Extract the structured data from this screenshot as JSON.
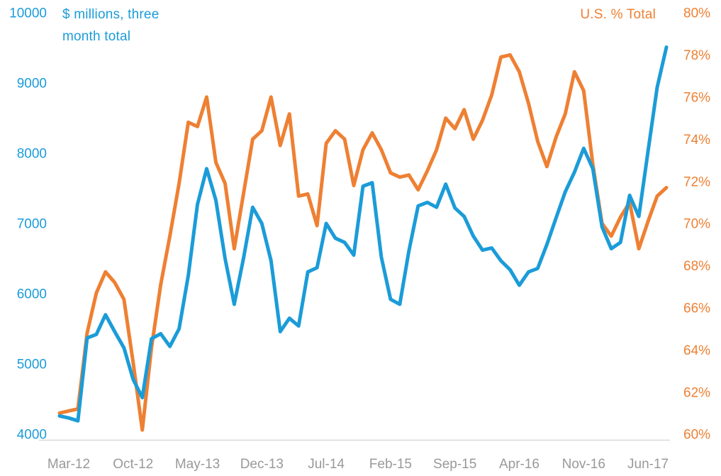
{
  "colors": {
    "blue": "#1b9cd8",
    "orange": "#ee8033",
    "x_tick_gray": "#98999b",
    "axis_line": "#d9d9d9",
    "background": "#ffffff"
  },
  "chart_data": {
    "type": "line",
    "title": "",
    "left_axis_title": "$ millions, three month total",
    "right_axis_title": "U.S. % Total",
    "grid": false,
    "legend_position": "top (axis titles act as legend)",
    "x": [
      "Feb-12",
      "Mar-12",
      "Apr-12",
      "May-12",
      "Jun-12",
      "Jul-12",
      "Aug-12",
      "Sep-12",
      "Oct-12",
      "Nov-12",
      "Dec-12",
      "Jan-13",
      "Feb-13",
      "Mar-13",
      "Apr-13",
      "May-13",
      "Jun-13",
      "Jul-13",
      "Aug-13",
      "Sep-13",
      "Oct-13",
      "Nov-13",
      "Dec-13",
      "Jan-14",
      "Feb-14",
      "Mar-14",
      "Apr-14",
      "May-14",
      "Jun-14",
      "Jul-14",
      "Aug-14",
      "Sep-14",
      "Oct-14",
      "Nov-14",
      "Dec-14",
      "Jan-15",
      "Feb-15",
      "Mar-15",
      "Apr-15",
      "May-15",
      "Jun-15",
      "Jul-15",
      "Aug-15",
      "Sep-15",
      "Oct-15",
      "Nov-15",
      "Dec-15",
      "Jan-16",
      "Feb-16",
      "Mar-16",
      "Apr-16",
      "May-16",
      "Jun-16",
      "Jul-16",
      "Aug-16",
      "Sep-16",
      "Oct-16",
      "Nov-16",
      "Dec-16",
      "Jan-17",
      "Feb-17",
      "Mar-17",
      "Apr-17",
      "May-17",
      "Jun-17",
      "Jul-17",
      "Aug-17"
    ],
    "x_tick_labels": [
      "Mar-12",
      "Oct-12",
      "May-13",
      "Dec-13",
      "Jul-14",
      "Feb-15",
      "Sep-15",
      "Apr-16",
      "Nov-16",
      "Jun-17"
    ],
    "x_tick_indices": [
      1,
      8,
      15,
      22,
      29,
      36,
      43,
      50,
      57,
      64
    ],
    "left_axis": {
      "min": 4000,
      "max": 10000,
      "step": 1000,
      "tick_labels": [
        "10000",
        "9000",
        "8000",
        "7000",
        "6000",
        "5000",
        "4000"
      ]
    },
    "right_axis": {
      "min": 60,
      "max": 80,
      "step": 2,
      "tick_labels": [
        "80%",
        "78%",
        "76%",
        "74%",
        "72%",
        "70%",
        "68%",
        "66%",
        "64%",
        "62%",
        "60%"
      ]
    },
    "series": [
      {
        "name": "$ millions, three month total",
        "axis": "left",
        "color": "#ee8033-NOTE-see-blue",
        "values": [
          4260,
          4230,
          4190,
          5370,
          5420,
          5700,
          5460,
          5230,
          4780,
          4520,
          5360,
          5430,
          5250,
          5500,
          6260,
          7270,
          7780,
          7330,
          6500,
          5850,
          6500,
          7230,
          7000,
          6470,
          5460,
          5650,
          5540,
          6310,
          6370,
          7000,
          6790,
          6730,
          6550,
          7530,
          7580,
          6520,
          5920,
          5850,
          6610,
          7250,
          7300,
          7230,
          7560,
          7220,
          7100,
          6820,
          6620,
          6650,
          6470,
          6340,
          6120,
          6310,
          6360,
          6700,
          7080,
          7450,
          7730,
          8070,
          7780,
          6950,
          6640,
          6730,
          7400,
          7100,
          8030,
          8940,
          9510
        ]
      },
      {
        "name": "U.S. % Total",
        "axis": "right",
        "color": "#ee8033",
        "values": [
          61.0,
          61.1,
          61.2,
          64.8,
          66.7,
          67.7,
          67.2,
          66.4,
          63.4,
          60.2,
          64.1,
          67.1,
          69.4,
          71.9,
          74.8,
          74.6,
          76.0,
          72.9,
          71.9,
          68.8,
          71.4,
          74.0,
          74.4,
          76.0,
          73.7,
          75.2,
          71.3,
          71.4,
          69.9,
          73.8,
          74.4,
          74.0,
          71.8,
          73.5,
          74.3,
          73.5,
          72.4,
          72.2,
          72.3,
          71.6,
          72.5,
          73.5,
          75.0,
          74.5,
          75.4,
          74.0,
          74.9,
          76.1,
          77.9,
          78.0,
          77.2,
          75.7,
          73.9,
          72.7,
          74.1,
          75.2,
          77.2,
          76.3,
          72.8,
          70.0,
          69.4,
          70.3,
          71.0,
          68.8,
          70.1,
          71.3,
          71.7
        ]
      }
    ]
  }
}
